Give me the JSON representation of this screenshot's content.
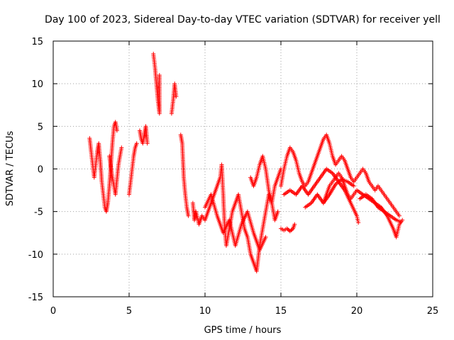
{
  "chart_data": {
    "type": "scatter",
    "title": "Day 100 of 2023, Sidereal Day-to-day VTEC variation (SDTVAR) for receiver yell",
    "xlabel": "GPS time / hours",
    "ylabel": "SDTVAR / TECUs",
    "xlim": [
      0,
      25
    ],
    "ylim": [
      -15,
      15
    ],
    "xticks": [
      "0",
      "5",
      "10",
      "15",
      "20",
      "25"
    ],
    "yticks": [
      "-15",
      "-10",
      "-5",
      "0",
      "5",
      "10",
      "15"
    ],
    "grid": true,
    "marker": "+",
    "color": "#ff0000",
    "series": [
      {
        "name": "SDTVAR",
        "segments": [
          [
            [
              2.4,
              3.6
            ],
            [
              2.5,
              2.0
            ],
            [
              2.6,
              0.5
            ],
            [
              2.7,
              -1.0
            ],
            [
              2.8,
              0.5
            ],
            [
              2.9,
              2.0
            ],
            [
              3.0,
              3.0
            ],
            [
              3.1,
              1.0
            ],
            [
              3.2,
              -1.5
            ],
            [
              3.3,
              -3.0
            ],
            [
              3.4,
              -4.5
            ],
            [
              3.5,
              -5.0
            ],
            [
              3.6,
              -4.0
            ],
            [
              3.7,
              -2.0
            ],
            [
              3.8,
              0.5
            ],
            [
              3.9,
              3.0
            ],
            [
              4.0,
              5.0
            ],
            [
              4.1,
              5.5
            ],
            [
              4.2,
              4.5
            ]
          ],
          [
            [
              3.7,
              1.5
            ],
            [
              3.9,
              -1.0
            ],
            [
              4.1,
              -3.0
            ],
            [
              4.3,
              0.5
            ],
            [
              4.5,
              2.5
            ]
          ],
          [
            [
              5.0,
              -3.0
            ],
            [
              5.1,
              -1.5
            ],
            [
              5.2,
              0.0
            ],
            [
              5.3,
              1.5
            ],
            [
              5.4,
              2.5
            ],
            [
              5.5,
              3.0
            ]
          ],
          [
            [
              5.7,
              4.5
            ],
            [
              5.8,
              3.5
            ],
            [
              5.9,
              3.0
            ],
            [
              6.0,
              4.0
            ],
            [
              6.1,
              5.0
            ],
            [
              6.2,
              3.0
            ]
          ],
          [
            [
              6.6,
              13.5
            ],
            [
              6.7,
              12.0
            ],
            [
              6.8,
              10.0
            ],
            [
              6.9,
              8.0
            ],
            [
              7.0,
              6.5
            ],
            [
              7.0,
              11.0
            ]
          ],
          [
            [
              7.8,
              6.5
            ],
            [
              7.9,
              8.0
            ],
            [
              8.0,
              10.0
            ],
            [
              8.1,
              8.5
            ]
          ],
          [
            [
              8.4,
              4.0
            ],
            [
              8.5,
              3.0
            ],
            [
              8.6,
              -1.0
            ],
            [
              8.7,
              -3.0
            ],
            [
              8.8,
              -4.5
            ],
            [
              8.9,
              -5.5
            ]
          ],
          [
            [
              9.2,
              -4.0
            ],
            [
              9.3,
              -6.0
            ],
            [
              9.4,
              -5.0
            ],
            [
              9.6,
              -6.5
            ],
            [
              9.8,
              -5.5
            ],
            [
              10.0,
              -6.0
            ],
            [
              10.2,
              -5.0
            ],
            [
              10.4,
              -4.0
            ],
            [
              10.6,
              -3.0
            ],
            [
              10.8,
              -2.0
            ],
            [
              11.0,
              -1.0
            ],
            [
              11.1,
              0.5
            ],
            [
              11.2,
              -3.0
            ],
            [
              11.3,
              -7.0
            ],
            [
              11.4,
              -9.0
            ],
            [
              11.6,
              -7.0
            ],
            [
              11.8,
              -5.0
            ],
            [
              12.0,
              -4.0
            ],
            [
              12.2,
              -3.0
            ],
            [
              12.4,
              -5.0
            ],
            [
              12.6,
              -7.0
            ],
            [
              12.8,
              -8.0
            ],
            [
              13.0,
              -10.0
            ],
            [
              13.2,
              -11.0
            ],
            [
              13.4,
              -12.0
            ],
            [
              13.6,
              -9.0
            ],
            [
              13.8,
              -7.0
            ],
            [
              14.0,
              -5.0
            ],
            [
              14.2,
              -3.0
            ],
            [
              14.4,
              -4.0
            ],
            [
              14.6,
              -6.0
            ],
            [
              14.8,
              -5.0
            ]
          ],
          [
            [
              10.0,
              -4.5
            ],
            [
              10.4,
              -3.0
            ],
            [
              10.8,
              -5.5
            ],
            [
              11.2,
              -7.5
            ],
            [
              11.6,
              -6.0
            ],
            [
              12.0,
              -9.0
            ],
            [
              12.4,
              -6.5
            ],
            [
              12.8,
              -5.0
            ],
            [
              13.2,
              -7.5
            ],
            [
              13.6,
              -9.5
            ],
            [
              14.0,
              -8.0
            ]
          ],
          [
            [
              13.0,
              -1.0
            ],
            [
              13.2,
              -2.0
            ],
            [
              13.4,
              -1.0
            ],
            [
              13.6,
              0.5
            ],
            [
              13.8,
              1.5
            ],
            [
              14.0,
              0.0
            ],
            [
              14.2,
              -2.5
            ],
            [
              14.4,
              -4.0
            ],
            [
              14.6,
              -2.0
            ],
            [
              14.8,
              -1.0
            ],
            [
              15.0,
              0.0
            ]
          ],
          [
            [
              15.0,
              -7.0
            ],
            [
              15.2,
              -7.2
            ],
            [
              15.4,
              -7.0
            ],
            [
              15.6,
              -7.3
            ],
            [
              15.8,
              -7.0
            ],
            [
              15.9,
              -6.5
            ]
          ],
          [
            [
              15.0,
              -2.0
            ],
            [
              15.2,
              0.0
            ],
            [
              15.4,
              1.5
            ],
            [
              15.6,
              2.5
            ],
            [
              15.8,
              2.0
            ],
            [
              16.0,
              1.0
            ],
            [
              16.2,
              -0.5
            ],
            [
              16.4,
              -1.5
            ],
            [
              16.6,
              -2.0
            ],
            [
              16.8,
              -1.5
            ],
            [
              17.0,
              -0.5
            ],
            [
              17.2,
              0.5
            ],
            [
              17.4,
              1.5
            ],
            [
              17.6,
              2.5
            ],
            [
              17.8,
              3.5
            ],
            [
              18.0,
              4.0
            ],
            [
              18.2,
              3.0
            ],
            [
              18.4,
              1.5
            ],
            [
              18.6,
              0.5
            ],
            [
              18.8,
              1.0
            ],
            [
              19.0,
              1.5
            ],
            [
              19.2,
              1.0
            ],
            [
              19.4,
              0.0
            ],
            [
              19.6,
              -1.0
            ],
            [
              19.8,
              -1.5
            ],
            [
              20.0,
              -1.0
            ],
            [
              20.2,
              -0.5
            ],
            [
              20.4,
              0.0
            ],
            [
              20.6,
              -0.5
            ],
            [
              20.8,
              -1.5
            ],
            [
              21.0,
              -2.0
            ],
            [
              21.2,
              -2.5
            ],
            [
              21.4,
              -2.0
            ],
            [
              21.6,
              -2.5
            ],
            [
              21.8,
              -3.0
            ],
            [
              22.0,
              -3.5
            ],
            [
              22.2,
              -4.0
            ],
            [
              22.4,
              -4.5
            ],
            [
              22.6,
              -5.0
            ],
            [
              22.8,
              -5.5
            ]
          ],
          [
            [
              15.2,
              -3.0
            ],
            [
              15.6,
              -2.5
            ],
            [
              16.0,
              -3.0
            ],
            [
              16.4,
              -2.0
            ],
            [
              16.8,
              -3.0
            ],
            [
              17.2,
              -2.0
            ],
            [
              17.6,
              -1.0
            ],
            [
              18.0,
              0.0
            ],
            [
              18.4,
              -0.5
            ],
            [
              18.8,
              -1.5
            ],
            [
              19.2,
              -2.5
            ],
            [
              19.6,
              -4.0
            ],
            [
              20.0,
              -5.5
            ],
            [
              20.1,
              -6.3
            ]
          ],
          [
            [
              16.6,
              -4.5
            ],
            [
              17.0,
              -4.0
            ],
            [
              17.4,
              -3.0
            ],
            [
              17.8,
              -4.0
            ],
            [
              18.0,
              -3.0
            ],
            [
              18.2,
              -2.0
            ],
            [
              18.4,
              -1.5
            ],
            [
              18.6,
              -1.0
            ],
            [
              18.8,
              -0.5
            ],
            [
              19.0,
              -1.0
            ],
            [
              19.2,
              -2.0
            ],
            [
              19.4,
              -3.0
            ],
            [
              19.6,
              -3.5
            ],
            [
              19.8,
              -3.0
            ],
            [
              20.0,
              -2.5
            ],
            [
              20.4,
              -3.0
            ],
            [
              20.8,
              -3.5
            ],
            [
              21.2,
              -4.0
            ],
            [
              21.6,
              -4.5
            ],
            [
              22.0,
              -5.5
            ],
            [
              22.4,
              -7.0
            ],
            [
              22.6,
              -8.0
            ],
            [
              22.8,
              -6.5
            ],
            [
              23.0,
              -6.0
            ]
          ],
          [
            [
              20.2,
              -3.5
            ],
            [
              20.6,
              -3.0
            ],
            [
              21.0,
              -3.5
            ],
            [
              21.4,
              -4.5
            ],
            [
              21.8,
              -5.0
            ],
            [
              22.2,
              -5.5
            ],
            [
              22.6,
              -6.0
            ],
            [
              22.9,
              -6.2
            ]
          ],
          [
            [
              17.8,
              -4.0
            ],
            [
              18.2,
              -3.0
            ],
            [
              18.6,
              -1.8
            ],
            [
              19.0,
              -1.2
            ],
            [
              19.4,
              -1.5
            ],
            [
              19.8,
              -2.0
            ]
          ]
        ]
      }
    ]
  }
}
